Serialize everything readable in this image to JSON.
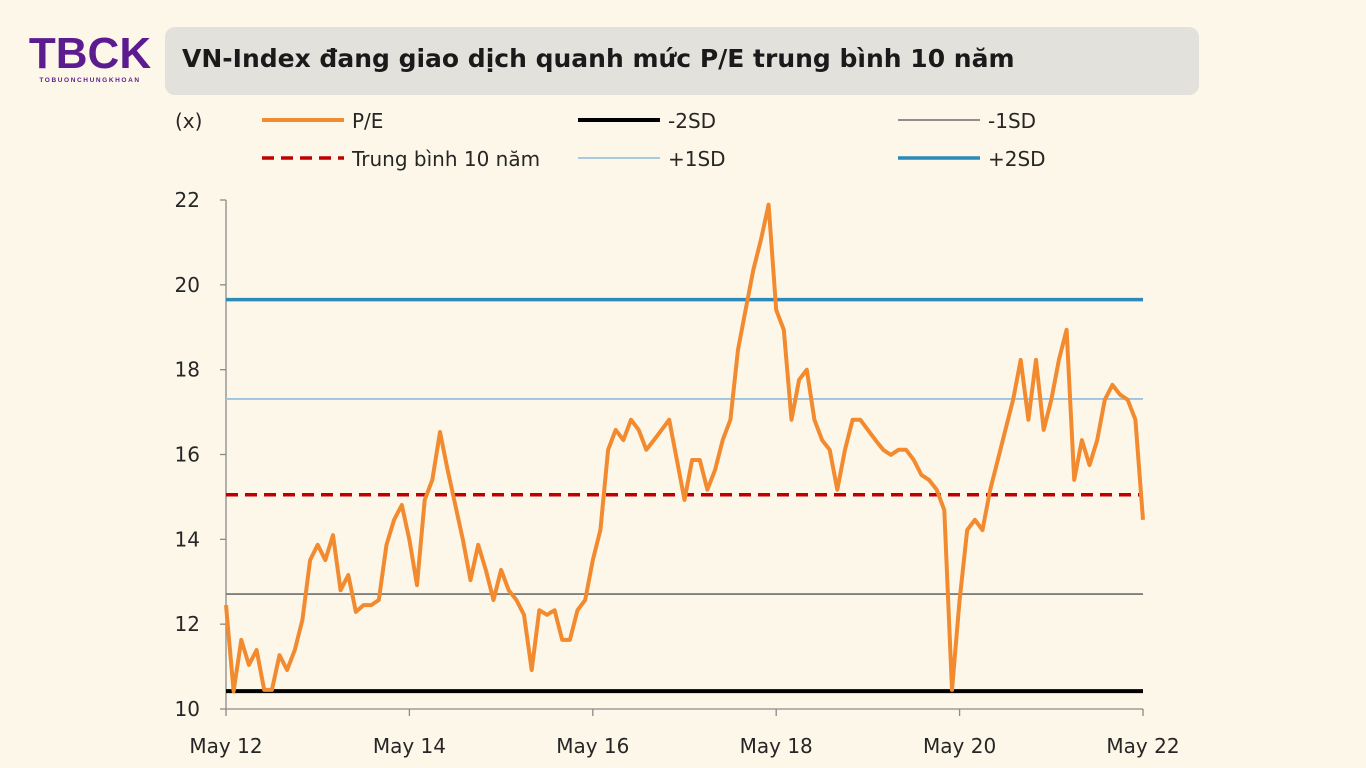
{
  "logo": {
    "text": "TBCK",
    "subtext": "TOBUONCHUNGKHOAN"
  },
  "title": "VN-Index đang giao dịch quanh mức P/E trung bình 10 năm",
  "chart_data": {
    "type": "line",
    "title": "VN-Index đang giao dịch quanh mức P/E trung bình 10 năm",
    "ylabel": "(x)",
    "ylim": [
      10,
      22
    ],
    "yticks": [
      10,
      12,
      14,
      16,
      18,
      20,
      22
    ],
    "xtick_labels": [
      "May 12",
      "May 14",
      "May 16",
      "May 18",
      "May 20",
      "May 22"
    ],
    "xtick_dates": [
      "2012-05",
      "2014-05",
      "2016-05",
      "2018-05",
      "2020-05",
      "2022-05"
    ],
    "grid": false,
    "legend_placement": "top",
    "x": [
      "2012-05",
      "2012-06",
      "2012-07",
      "2012-08",
      "2012-09",
      "2012-10",
      "2012-11",
      "2012-12",
      "2013-01",
      "2013-02",
      "2013-03",
      "2013-04",
      "2013-05",
      "2013-06",
      "2013-07",
      "2013-08",
      "2013-09",
      "2013-10",
      "2013-11",
      "2013-12",
      "2014-01",
      "2014-02",
      "2014-03",
      "2014-04",
      "2014-05",
      "2014-06",
      "2014-07",
      "2014-08",
      "2014-09",
      "2014-10",
      "2014-11",
      "2014-12",
      "2015-01",
      "2015-02",
      "2015-03",
      "2015-04",
      "2015-05",
      "2015-06",
      "2015-07",
      "2015-08",
      "2015-09",
      "2015-10",
      "2015-11",
      "2015-12",
      "2016-01",
      "2016-02",
      "2016-03",
      "2016-04",
      "2016-05",
      "2016-06",
      "2016-07",
      "2016-08",
      "2016-09",
      "2016-10",
      "2016-11",
      "2016-12",
      "2017-01",
      "2017-02",
      "2017-03",
      "2017-04",
      "2017-05",
      "2017-06",
      "2017-07",
      "2017-08",
      "2017-09",
      "2017-10",
      "2017-11",
      "2017-12",
      "2018-01",
      "2018-02",
      "2018-03",
      "2018-04",
      "2018-05",
      "2018-06",
      "2018-07",
      "2018-08",
      "2018-09",
      "2018-10",
      "2018-11",
      "2018-12",
      "2019-01",
      "2019-02",
      "2019-03",
      "2019-04",
      "2019-05",
      "2019-06",
      "2019-07",
      "2019-08",
      "2019-09",
      "2019-10",
      "2019-11",
      "2019-12",
      "2020-01",
      "2020-02",
      "2020-03",
      "2020-04",
      "2020-05",
      "2020-06",
      "2020-07",
      "2020-08",
      "2020-09",
      "2020-10",
      "2020-11",
      "2020-12",
      "2021-01",
      "2021-02",
      "2021-03",
      "2021-04",
      "2021-05",
      "2021-06",
      "2021-07",
      "2021-08",
      "2021-09",
      "2021-10",
      "2021-11",
      "2021-12",
      "2022-01",
      "2022-02",
      "2022-03",
      "2022-04",
      "2022-05"
    ],
    "series": [
      {
        "name": "P/E",
        "color": "#f28a30",
        "style": "solid",
        "values": [
          12.45,
          10.42,
          11.63,
          11.04,
          11.39,
          10.45,
          10.45,
          11.27,
          10.92,
          11.39,
          12.1,
          13.51,
          13.87,
          13.51,
          14.1,
          12.8,
          13.16,
          12.29,
          12.45,
          12.45,
          12.57,
          13.87,
          14.46,
          14.81,
          13.99,
          12.92,
          14.93,
          15.4,
          16.53,
          15.64,
          14.81,
          13.99,
          13.04,
          13.87,
          13.28,
          12.57,
          13.28,
          12.8,
          12.57,
          12.22,
          10.92,
          12.33,
          12.22,
          12.33,
          11.63,
          11.63,
          12.33,
          12.57,
          13.51,
          14.22,
          16.11,
          16.58,
          16.34,
          16.82,
          16.58,
          16.11,
          16.34,
          16.58,
          16.82,
          15.87,
          14.93,
          15.87,
          15.87,
          15.17,
          15.64,
          16.34,
          16.82,
          18.47,
          19.41,
          20.35,
          21.06,
          21.89,
          19.41,
          18.94,
          16.82,
          17.76,
          18.0,
          16.82,
          16.34,
          16.11,
          15.17,
          16.11,
          16.82,
          16.82,
          16.58,
          16.34,
          16.11,
          15.99,
          16.11,
          16.11,
          15.87,
          15.52,
          15.4,
          15.17,
          14.69,
          10.45,
          12.57,
          14.22,
          14.46,
          14.22,
          15.17,
          15.87,
          16.58,
          17.29,
          18.23,
          16.82,
          18.23,
          16.58,
          17.29,
          18.23,
          18.94,
          15.4,
          16.34,
          15.75,
          16.34,
          17.29,
          17.64,
          17.41,
          17.29,
          16.82,
          14.46
        ]
      },
      {
        "name": "-2SD",
        "color": "#000000",
        "style": "solid",
        "constant": 10.42
      },
      {
        "name": "-1SD",
        "color": "#7f7f7f",
        "style": "solid",
        "constant": 12.71
      },
      {
        "name": "Trung bình 10 năm",
        "color": "#c00000",
        "style": "dashed",
        "constant": 15.05
      },
      {
        "name": "+1SD",
        "color": "#9dc3dd",
        "style": "solid",
        "constant": 17.31
      },
      {
        "name": "+2SD",
        "color": "#2b8ab8",
        "style": "solid",
        "constant": 19.65
      }
    ]
  }
}
